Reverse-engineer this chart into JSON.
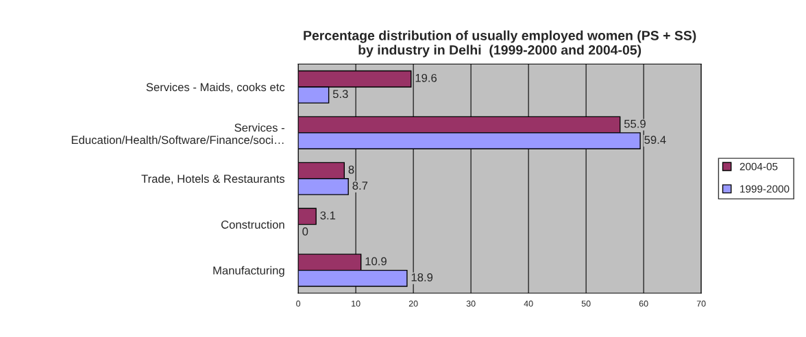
{
  "chart_data": {
    "type": "bar",
    "orientation": "horizontal",
    "title": "Percentage distribution of usually employed women (PS + SS)\nby industry in Delhi  (1999-2000 and 2004-05)",
    "categories": [
      "Services - Maids, cooks etc",
      "Services -\nEducation/Health/Software/Finance/soci…",
      "Trade, Hotels & Restaurants",
      "Construction",
      "Manufacturing"
    ],
    "series": [
      {
        "name": "2004-05",
        "color": "#993366",
        "values": [
          19.6,
          55.9,
          8,
          3.1,
          10.9
        ]
      },
      {
        "name": "1999-2000",
        "color": "#9999ff",
        "values": [
          5.3,
          59.4,
          8.7,
          0,
          18.9
        ]
      }
    ],
    "xlim": [
      0,
      70
    ],
    "xticks": [
      0,
      10,
      20,
      30,
      40,
      50,
      60,
      70
    ],
    "grid": "x",
    "legend": "right",
    "data_labels": true
  }
}
